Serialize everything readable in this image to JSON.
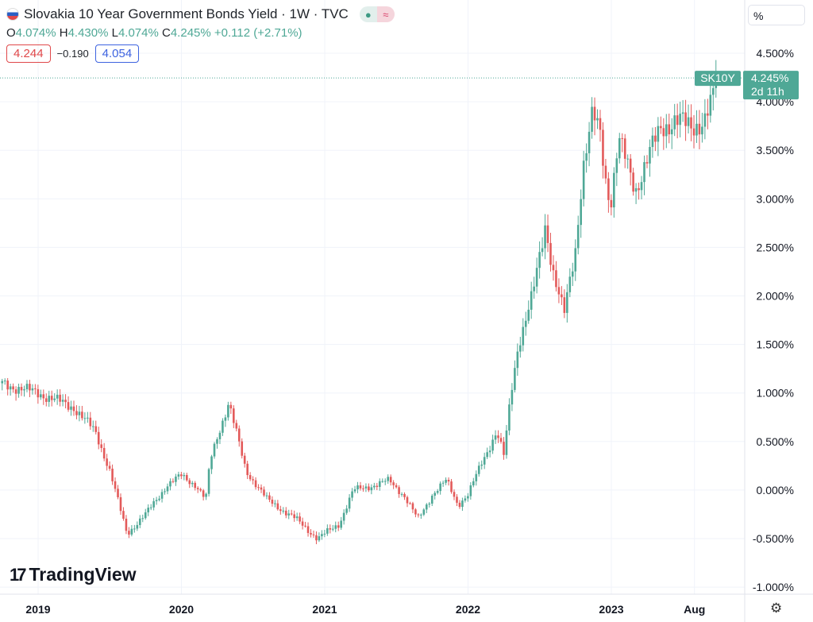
{
  "header": {
    "title": "Slovakia 10 Year Government Bonds Yield · 1W · TVC",
    "ohlc": {
      "o_label": "O",
      "o": "4.074%",
      "h_label": "H",
      "h": "4.430%",
      "l_label": "L",
      "l": "4.074%",
      "c_label": "C",
      "c": "4.245%",
      "change": "+0.112 (+2.71%)"
    },
    "indicator": {
      "left": "4.244",
      "diff": "−0.190",
      "right": "4.054"
    },
    "status_icons": [
      "market-open-dot",
      "delayed-data-wave"
    ]
  },
  "scale_button": "%",
  "price_tag": {
    "symbol": "SK10Y",
    "price": "4.245%",
    "countdown": "2d 11h"
  },
  "logo_text": "TradingView",
  "colors": {
    "up": "#4fa896",
    "down": "#e35a5a",
    "grid": "#f0f3fa",
    "accent": "#4fa896"
  },
  "chart_data": {
    "type": "candlestick",
    "title": "Slovakia 10 Year Government Bonds Yield",
    "interval": "1W",
    "ylim": [
      -1.0,
      4.5
    ],
    "y_ticks": [
      "4.500%",
      "4.000%",
      "3.500%",
      "3.000%",
      "2.500%",
      "2.000%",
      "1.500%",
      "1.000%",
      "0.500%",
      "0.000%",
      "-0.500%",
      "-1.000%"
    ],
    "y_tick_values": [
      4.5,
      4.0,
      3.5,
      3.0,
      2.5,
      2.0,
      1.5,
      1.0,
      0.5,
      0.0,
      -0.5,
      -1.0
    ],
    "x_ticks": [
      {
        "label": "2019",
        "t": 2019.0
      },
      {
        "label": "2020",
        "t": 2020.0
      },
      {
        "label": "2021",
        "t": 2021.0
      },
      {
        "label": "2022",
        "t": 2022.0
      },
      {
        "label": "2023",
        "t": 2023.0
      },
      {
        "label": "Aug",
        "t": 2023.58
      }
    ],
    "xlim": [
      2018.73,
      2023.96
    ],
    "last_price": 4.245,
    "close_path": [
      [
        2018.73,
        1.1
      ],
      [
        2019.0,
        1.0
      ],
      [
        2019.25,
        0.85
      ],
      [
        2019.4,
        0.6
      ],
      [
        2019.5,
        0.2
      ],
      [
        2019.62,
        -0.45
      ],
      [
        2019.75,
        -0.25
      ],
      [
        2019.9,
        0.05
      ],
      [
        2020.0,
        0.15
      ],
      [
        2020.1,
        0.05
      ],
      [
        2020.17,
        -0.1
      ],
      [
        2020.2,
        0.3
      ],
      [
        2020.25,
        0.55
      ],
      [
        2020.33,
        0.9
      ],
      [
        2020.45,
        0.2
      ],
      [
        2020.6,
        -0.1
      ],
      [
        2020.8,
        -0.3
      ],
      [
        2020.95,
        -0.5
      ],
      [
        2021.1,
        -0.35
      ],
      [
        2021.2,
        0.0
      ],
      [
        2021.35,
        0.05
      ],
      [
        2021.45,
        0.1
      ],
      [
        2021.55,
        -0.05
      ],
      [
        2021.65,
        -0.3
      ],
      [
        2021.75,
        -0.05
      ],
      [
        2021.85,
        0.1
      ],
      [
        2021.93,
        -0.15
      ],
      [
        2022.0,
        -0.05
      ],
      [
        2022.1,
        0.3
      ],
      [
        2022.2,
        0.6
      ],
      [
        2022.25,
        0.35
      ],
      [
        2022.3,
        1.0
      ],
      [
        2022.35,
        1.5
      ],
      [
        2022.45,
        2.0
      ],
      [
        2022.5,
        2.4
      ],
      [
        2022.54,
        2.75
      ],
      [
        2022.6,
        2.2
      ],
      [
        2022.67,
        1.8
      ],
      [
        2022.75,
        2.5
      ],
      [
        2022.8,
        3.3
      ],
      [
        2022.87,
        3.85
      ],
      [
        2022.92,
        3.7
      ],
      [
        2022.97,
        3.1
      ],
      [
        2023.0,
        3.0
      ],
      [
        2023.05,
        3.6
      ],
      [
        2023.1,
        3.4
      ],
      [
        2023.17,
        3.1
      ],
      [
        2023.25,
        3.4
      ],
      [
        2023.35,
        3.75
      ],
      [
        2023.45,
        3.8
      ],
      [
        2023.55,
        3.75
      ],
      [
        2023.65,
        3.8
      ],
      [
        2023.72,
        4.07
      ],
      [
        2023.74,
        4.245
      ]
    ]
  }
}
